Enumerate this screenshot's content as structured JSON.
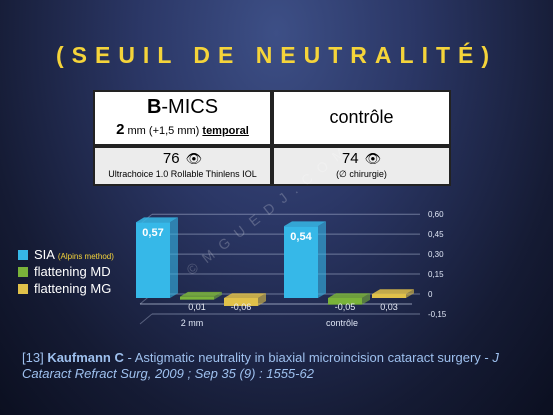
{
  "title": "(SEUIL DE NEUTRALITÉ)",
  "table": {
    "col1": {
      "name_bold": "B",
      "name_rest": "-MICS",
      "size_big": "2",
      "size_unit": "mm",
      "size_extra": "(+1,5 mm)",
      "location": "temporal",
      "patients": "76",
      "iol": "Ultrachoice 1.0 Rollable Thinlens IOL"
    },
    "col2": {
      "name": "contrôle",
      "patients": "74",
      "note": "(∅ chirurgie)"
    },
    "eye_icon": "eye-icon"
  },
  "legend": {
    "items": [
      {
        "label": "SIA",
        "note": "(Alpins method)",
        "color": "#36b8e8"
      },
      {
        "label": "flattening MD",
        "note": "",
        "color": "#7ab33a"
      },
      {
        "label": "flattening MG",
        "note": "",
        "color": "#e0c14a"
      }
    ]
  },
  "chart_data": {
    "type": "bar",
    "categories": [
      "2 mm",
      "contrôle"
    ],
    "series": [
      {
        "name": "SIA (Alpins method)",
        "values": [
          0.57,
          0.54
        ],
        "labels": [
          "0,57",
          "0,54"
        ],
        "color": "#36b8e8"
      },
      {
        "name": "flattening MD",
        "values": [
          0.01,
          -0.05
        ],
        "labels": [
          "0,01",
          "-0,05"
        ],
        "color": "#7ab33a"
      },
      {
        "name": "flattening MG",
        "values": [
          -0.06,
          0.03
        ],
        "labels": [
          "-0,06",
          "0,03"
        ],
        "color": "#e0c14a"
      }
    ],
    "yticks": [
      0.6,
      0.45,
      0.3,
      0.15,
      0,
      -0.15
    ],
    "ytick_labels": [
      "0,60",
      "0,45",
      "0,30",
      "0,15",
      "0",
      "-0,15"
    ],
    "ylim": [
      -0.15,
      0.6
    ]
  },
  "reference": {
    "index": "[13]",
    "author": "Kaufmann C",
    "title": " - Astigmatic neutrality in biaxial microincision cataract surgery -",
    "journal": "J Cataract Refract Surg, 2009 ; Sep 35 (9) : 1555-62"
  },
  "watermark": "©MGUEDJ.COM"
}
